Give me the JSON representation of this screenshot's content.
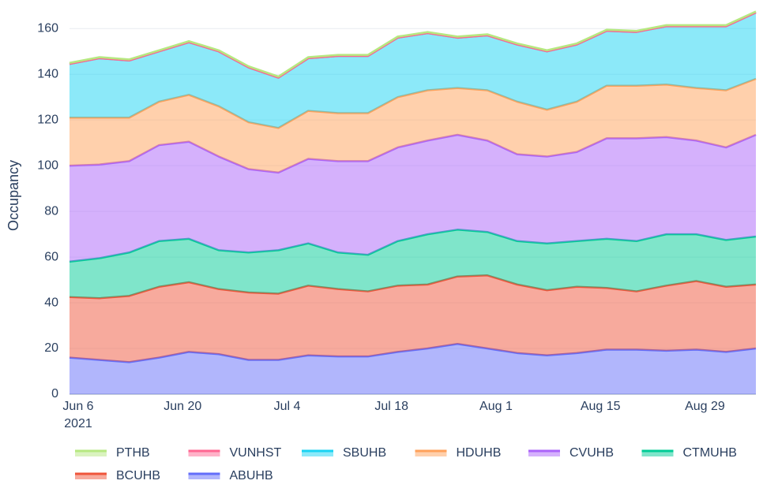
{
  "chart_data": {
    "type": "stacked-area",
    "y_label": "Occupancy",
    "x": [
      "2021-06-06",
      "2021-06-10",
      "2021-06-14",
      "2021-06-18",
      "2021-06-22",
      "2021-06-26",
      "2021-06-30",
      "2021-07-04",
      "2021-07-08",
      "2021-07-12",
      "2021-07-16",
      "2021-07-20",
      "2021-07-24",
      "2021-07-28",
      "2021-08-01",
      "2021-08-05",
      "2021-08-09",
      "2021-08-13",
      "2021-08-17",
      "2021-08-21",
      "2021-08-25",
      "2021-08-29",
      "2021-09-02",
      "2021-09-06"
    ],
    "xlim": [
      "2021-06-06",
      "2021-09-06"
    ],
    "xticks": [
      {
        "value": "2021-06-06",
        "label": "Jun 6"
      },
      {
        "value": "2021-06-20",
        "label": "Jun 20"
      },
      {
        "value": "2021-07-04",
        "label": "Jul 4"
      },
      {
        "value": "2021-07-18",
        "label": "Jul 18"
      },
      {
        "value": "2021-08-01",
        "label": "Aug 1"
      },
      {
        "value": "2021-08-15",
        "label": "Aug 15"
      },
      {
        "value": "2021-08-29",
        "label": "Aug 29"
      }
    ],
    "x_year_label": "2021",
    "ylim": [
      0,
      172.5
    ],
    "yticks": [
      0,
      20,
      40,
      60,
      80,
      100,
      120,
      140,
      160
    ],
    "grid": true,
    "series": [
      {
        "name": "ABUHB",
        "color": "#636efa",
        "values": [
          16,
          15,
          14,
          16,
          18.5,
          17.5,
          15,
          15,
          17,
          16.5,
          16.5,
          18.5,
          20,
          22,
          20,
          18,
          17,
          18,
          19.5,
          19.5,
          19,
          19.5,
          18.5,
          20
        ]
      },
      {
        "name": "BCUHB",
        "color": "#ef553b",
        "values": [
          26.5,
          27,
          29,
          31,
          30.5,
          28.5,
          29.5,
          29,
          30.5,
          29.5,
          28.5,
          29,
          28,
          29.5,
          32,
          30,
          28.5,
          29,
          27,
          25.5,
          28.5,
          30,
          28.5,
          28
        ]
      },
      {
        "name": "CTMUHB",
        "color": "#00cc96",
        "values": [
          15.5,
          17.5,
          19,
          20,
          19,
          17,
          17.5,
          19,
          18.5,
          16,
          16,
          19.5,
          22,
          20.5,
          19,
          19,
          20.5,
          20,
          21.5,
          22,
          22.5,
          20.5,
          20.5,
          21
        ]
      },
      {
        "name": "CVUHB",
        "color": "#ab63fa",
        "values": [
          42,
          41,
          40,
          42,
          42.5,
          41,
          36.5,
          34,
          37,
          40,
          41,
          41,
          41,
          41.5,
          40,
          38,
          38,
          39,
          44,
          45,
          42.5,
          41,
          40.5,
          44.5
        ]
      },
      {
        "name": "HDUHB",
        "color": "#ffa15a",
        "values": [
          21,
          20.5,
          19,
          19,
          20.5,
          22,
          20.5,
          19.5,
          21,
          21,
          21,
          22,
          22,
          20.5,
          22,
          23,
          20.5,
          22,
          23,
          23,
          23,
          23,
          25,
          24.5
        ]
      },
      {
        "name": "SBUHB",
        "color": "#19d3f3",
        "values": [
          23.5,
          26,
          25,
          22,
          23,
          24,
          24,
          22,
          23,
          25,
          25,
          26,
          25,
          22,
          24,
          25,
          25.5,
          25,
          24,
          23.5,
          25.5,
          27,
          28,
          29
        ]
      },
      {
        "name": "VUNHST",
        "color": "#ff6692",
        "values": [
          0,
          0,
          0,
          0,
          0,
          0,
          0,
          0,
          0,
          0,
          0,
          0,
          0,
          0,
          0,
          0,
          0,
          0,
          0,
          0,
          0,
          0,
          0,
          0
        ]
      },
      {
        "name": "PTHB",
        "color": "#b6e880",
        "values": [
          0.5,
          0.5,
          0.5,
          0.5,
          0.5,
          0.5,
          0.5,
          0.5,
          0.5,
          0.5,
          0.5,
          0.5,
          0.5,
          0.5,
          0.5,
          0.5,
          0.5,
          0.5,
          0.5,
          0.5,
          0.5,
          0.5,
          0.5,
          0.5
        ]
      }
    ]
  }
}
